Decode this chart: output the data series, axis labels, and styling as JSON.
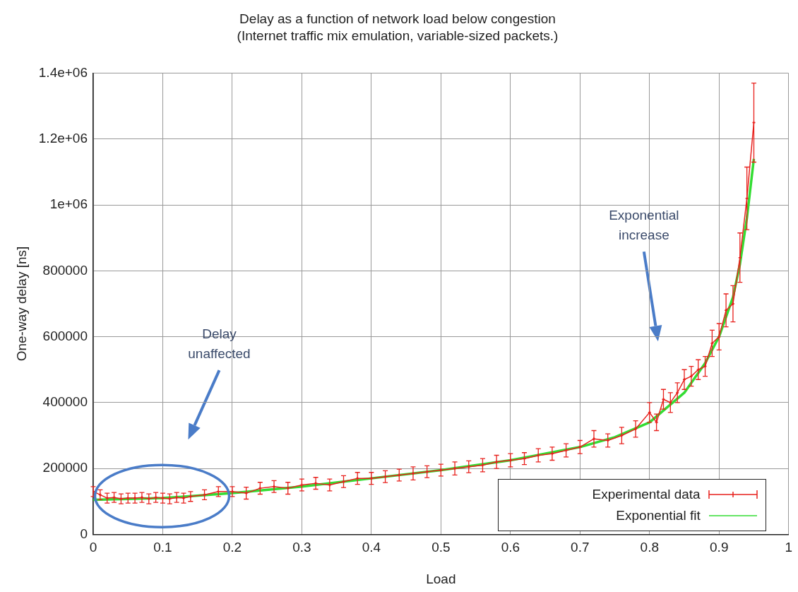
{
  "chart_data": {
    "type": "line",
    "title": "Delay as a function of network load below congestion",
    "subtitle": "(Internet traffic mix emulation, variable-sized packets.)",
    "xlabel": "Load",
    "ylabel": "One-way delay [ns]",
    "xlim": [
      0,
      1
    ],
    "xticks": [
      0,
      0.1,
      0.2,
      0.3,
      0.4,
      0.5,
      0.6,
      0.7,
      0.8,
      0.9,
      1
    ],
    "ylim": [
      0,
      1400000
    ],
    "yticks": [
      0,
      200000,
      400000,
      600000,
      800000,
      {
        "value": 1000000,
        "label": "1e+06"
      },
      {
        "value": 1200000,
        "label": "1.2e+06"
      },
      {
        "value": 1400000,
        "label": "1.4e+06"
      }
    ],
    "grid": true,
    "legend": "bottom right",
    "marker": "cross",
    "annotations": [
      "Delay unaffected",
      "Exponential increase"
    ],
    "series": [
      {
        "name": "Experimental data",
        "color": "#e8201c",
        "x": [
          0,
          0.01,
          0.02,
          0.03,
          0.04,
          0.05,
          0.06,
          0.07,
          0.08,
          0.09,
          0.1,
          0.11,
          0.12,
          0.13,
          0.14,
          0.16,
          0.18,
          0.2,
          0.22,
          0.24,
          0.26,
          0.28,
          0.3,
          0.32,
          0.34,
          0.36,
          0.38,
          0.4,
          0.42,
          0.44,
          0.46,
          0.48,
          0.5,
          0.52,
          0.54,
          0.56,
          0.58,
          0.6,
          0.62,
          0.64,
          0.66,
          0.68,
          0.7,
          0.72,
          0.74,
          0.76,
          0.78,
          0.8,
          0.81,
          0.82,
          0.83,
          0.84,
          0.85,
          0.86,
          0.87,
          0.88,
          0.89,
          0.9,
          0.91,
          0.92,
          0.93,
          0.94,
          0.95
        ],
        "values": [
          130000,
          120000,
          110000,
          112000,
          108000,
          110000,
          110000,
          112000,
          108000,
          112000,
          110000,
          108000,
          112000,
          110000,
          115000,
          120000,
          130000,
          130000,
          125000,
          140000,
          145000,
          140000,
          150000,
          155000,
          150000,
          160000,
          170000,
          170000,
          175000,
          180000,
          185000,
          190000,
          195000,
          200000,
          205000,
          210000,
          220000,
          225000,
          230000,
          240000,
          245000,
          255000,
          265000,
          290000,
          285000,
          300000,
          320000,
          370000,
          340000,
          410000,
          400000,
          430000,
          470000,
          480000,
          500000,
          510000,
          580000,
          600000,
          680000,
          700000,
          840000,
          1020000,
          1250000
        ],
        "errors": [
          15000,
          15000,
          15000,
          15000,
          15000,
          15000,
          15000,
          15000,
          15000,
          15000,
          15000,
          15000,
          15000,
          15000,
          15000,
          15000,
          15000,
          15000,
          18000,
          18000,
          18000,
          18000,
          18000,
          18000,
          18000,
          18000,
          18000,
          18000,
          18000,
          18000,
          20000,
          18000,
          18000,
          20000,
          18000,
          20000,
          20000,
          20000,
          18000,
          20000,
          20000,
          20000,
          20000,
          25000,
          20000,
          25000,
          25000,
          30000,
          25000,
          30000,
          30000,
          30000,
          30000,
          30000,
          30000,
          30000,
          40000,
          40000,
          50000,
          55000,
          75000,
          95000,
          120000
        ]
      },
      {
        "name": "Exponential fit",
        "color": "#33dd33",
        "marker": "none",
        "x": [
          0,
          0.1,
          0.2,
          0.3,
          0.4,
          0.5,
          0.6,
          0.7,
          0.75,
          0.8,
          0.85,
          0.88,
          0.9,
          0.92,
          0.93,
          0.94,
          0.95
        ],
        "values": [
          105000,
          110000,
          125000,
          145000,
          170000,
          195000,
          225000,
          265000,
          295000,
          340000,
          430000,
          520000,
          600000,
          720000,
          820000,
          960000,
          1140000
        ]
      }
    ]
  }
}
